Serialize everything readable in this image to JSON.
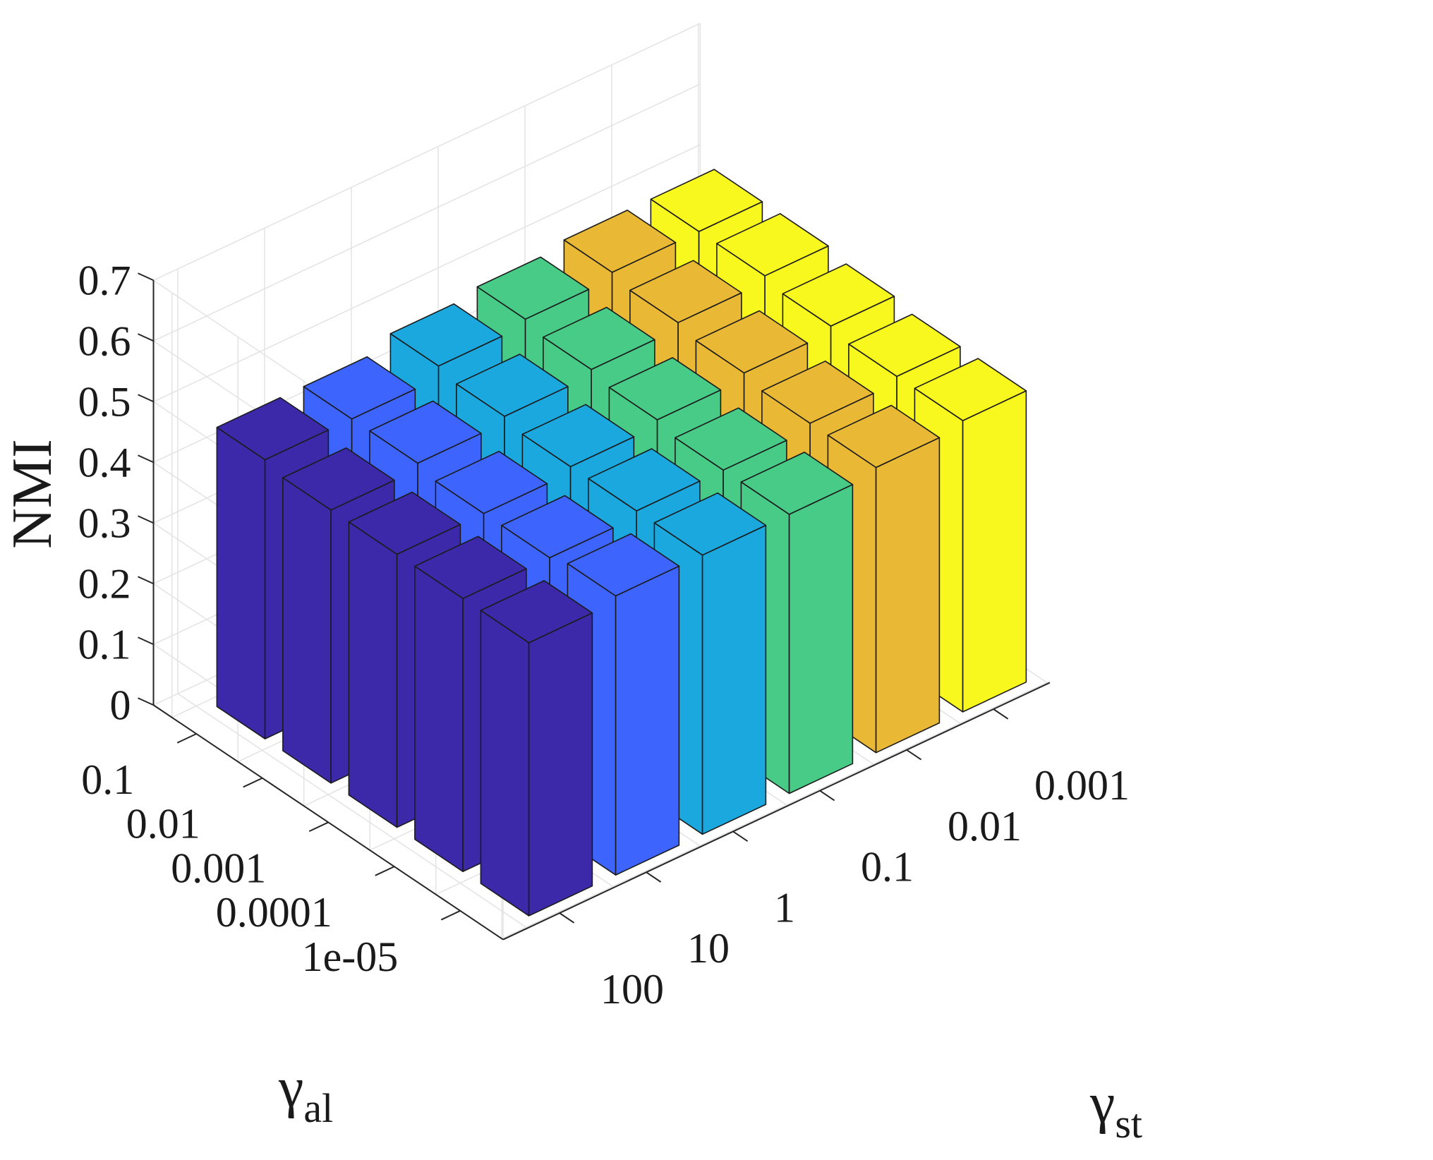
{
  "chart_data": {
    "type": "bar3d",
    "zlabel": "NMI",
    "zlim": [
      0,
      0.7
    ],
    "zticks": [
      "0",
      "0.1",
      "0.2",
      "0.3",
      "0.4",
      "0.5",
      "0.6",
      "0.7"
    ],
    "gamma_al": {
      "label_symbol": "γ",
      "label_sub": "al",
      "ticks": [
        "0.1",
        "0.01",
        "0.001",
        "0.0001",
        "1e-05"
      ]
    },
    "gamma_st": {
      "label_symbol": "γ",
      "label_sub": "st",
      "ticks": [
        "100",
        "10",
        "1",
        "0.1",
        "0.01",
        "0.001"
      ]
    },
    "series_colors": [
      "#3c29a9",
      "#3e64fe",
      "#1ba8de",
      "#47cb87",
      "#e9b835",
      "#f8f81e"
    ],
    "values": [
      [
        0.46,
        0.45,
        0.45,
        0.45,
        0.45
      ],
      [
        0.46,
        0.46,
        0.45,
        0.45,
        0.46
      ],
      [
        0.48,
        0.47,
        0.46,
        0.46,
        0.46
      ],
      [
        0.49,
        0.48,
        0.47,
        0.46,
        0.46
      ],
      [
        0.5,
        0.49,
        0.48,
        0.47,
        0.47
      ],
      [
        0.5,
        0.5,
        0.49,
        0.48,
        0.48
      ]
    ],
    "grid": true
  }
}
